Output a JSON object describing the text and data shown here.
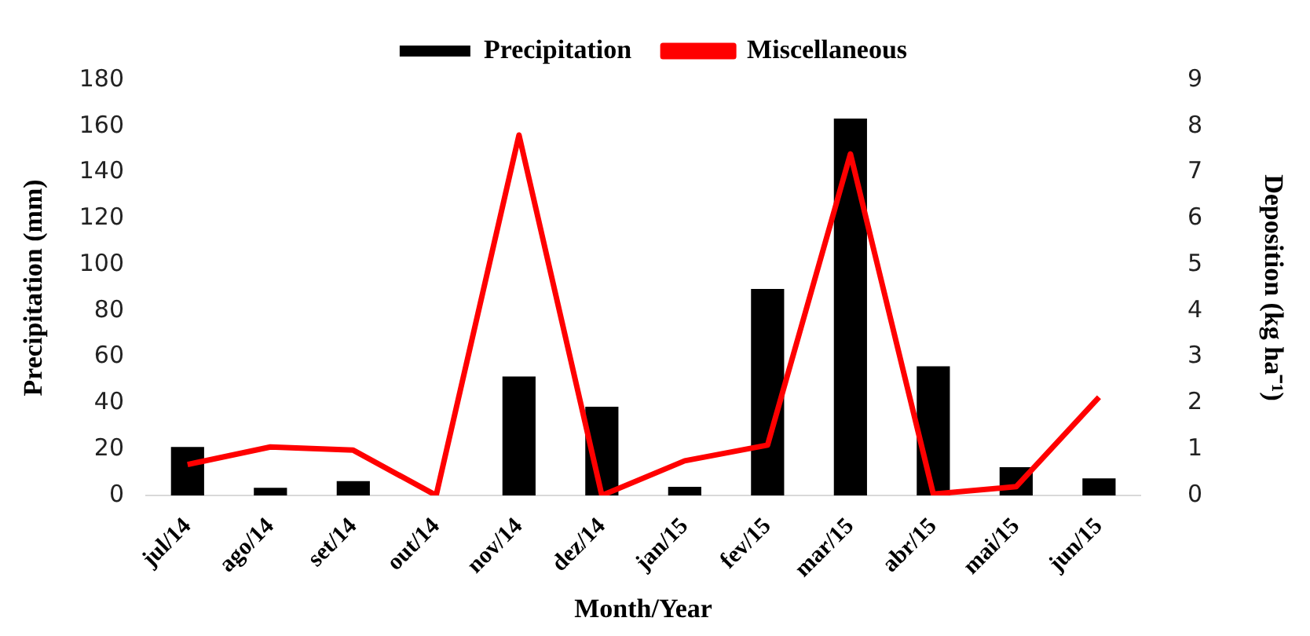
{
  "chart_data": {
    "type": "bar",
    "xlabel": "Month/Year",
    "ylabel": "Precipitation (mm)",
    "y2label": "Deposition (kg ha⁻¹)",
    "categories": [
      "jul/14",
      "ago/14",
      "set/14",
      "out/14",
      "nov/14",
      "dez/14",
      "jan/15",
      "fev/15",
      "mar/15",
      "abr/15",
      "mai/15",
      "jun/15"
    ],
    "series": [
      {
        "name": "Precipitation",
        "color": "#000000",
        "values": [
          21,
          3.3,
          6.2,
          0,
          51.5,
          38.4,
          3.7,
          89.5,
          163.3,
          56,
          12.2,
          7.4
        ]
      },
      {
        "name": "Miscellaneous",
        "type": "line",
        "axis": "y2",
        "color": "#ff0000",
        "values": [
          0.67,
          1.05,
          0.98,
          0,
          7.81,
          0,
          0.75,
          1.09,
          7.4,
          0.03,
          0.19,
          2.13
        ]
      }
    ],
    "ylim": [
      0,
      180
    ],
    "yticks": [
      0,
      20,
      40,
      60,
      80,
      100,
      120,
      140,
      160,
      180
    ],
    "y2lim": [
      0,
      9
    ],
    "y2ticks": [
      0,
      1,
      2,
      3,
      4,
      5,
      6,
      7,
      8,
      9
    ],
    "grid": false,
    "legend": "top",
    "marker": "none",
    "line_style": "solid"
  }
}
